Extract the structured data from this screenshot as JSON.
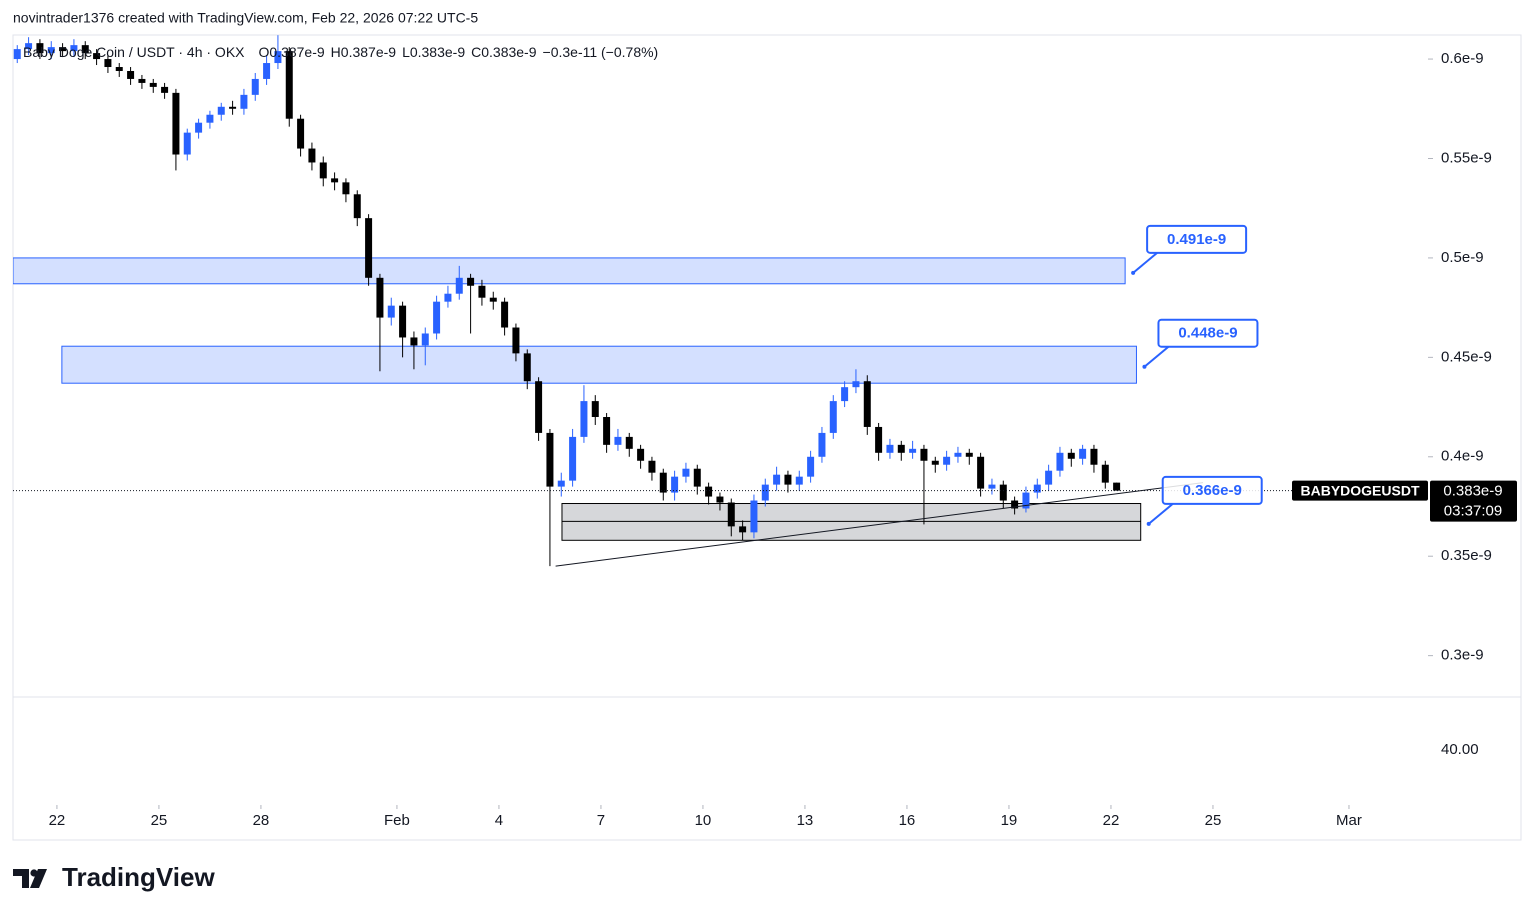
{
  "header": "novintrader1376 created with TradingView.com, Feb 22, 2026 07:22 UTC-5",
  "brand": "TradingView",
  "chart_data": {
    "type": "candlestick",
    "legend": {
      "symbol": "Baby Doge Coin / USDT · 4h · OKX",
      "values": [
        "O0.387e-9",
        "H0.387e-9",
        "L0.383e-9",
        "C0.383e-9",
        "−0.3e-11 (−0.78%)"
      ]
    },
    "xlim": [
      "2026-01-20T17:00",
      "2026-03-03T08:00"
    ],
    "xticks": [
      {
        "value": "2026-01-22T00:00",
        "label": "22"
      },
      {
        "value": "2026-01-25T00:00",
        "label": "25"
      },
      {
        "value": "2026-01-28T00:00",
        "label": "28"
      },
      {
        "value": "2026-02-01T00:00",
        "label": "Feb"
      },
      {
        "value": "2026-02-04T00:00",
        "label": "4"
      },
      {
        "value": "2026-02-07T00:00",
        "label": "7"
      },
      {
        "value": "2026-02-10T00:00",
        "label": "10"
      },
      {
        "value": "2026-02-13T00:00",
        "label": "13"
      },
      {
        "value": "2026-02-16T00:00",
        "label": "16"
      },
      {
        "value": "2026-02-19T00:00",
        "label": "19"
      },
      {
        "value": "2026-02-22T00:00",
        "label": "22"
      },
      {
        "value": "2026-02-25T00:00",
        "label": "25"
      },
      {
        "value": "2026-03-01T00:00",
        "label": "Mar"
      }
    ],
    "ylim": [
      2.792e-10,
      6.121e-10
    ],
    "yticks": [
      {
        "value": 3e-10,
        "label": "0.3e-9"
      },
      {
        "value": 3.5e-10,
        "label": "0.35e-9"
      },
      {
        "value": 4e-10,
        "label": "0.4e-9"
      },
      {
        "value": 4.5e-10,
        "label": "0.45e-9"
      },
      {
        "value": 5e-10,
        "label": "0.5e-9"
      },
      {
        "value": 5.5e-10,
        "label": "0.55e-9"
      },
      {
        "value": 6e-10,
        "label": "0.6e-9"
      }
    ],
    "up_color": "#2962ff",
    "down_color": "#000000",
    "x": [
      "2026-01-20T20:00",
      "2026-01-21T04:00",
      "2026-01-21T12:00",
      "2026-01-21T20:00",
      "2026-01-22T04:00",
      "2026-01-22T12:00",
      "2026-01-22T20:00",
      "2026-01-23T04:00",
      "2026-01-23T12:00",
      "2026-01-23T20:00",
      "2026-01-24T04:00",
      "2026-01-24T12:00",
      "2026-01-24T20:00",
      "2026-01-25T04:00",
      "2026-01-25T12:00",
      "2026-01-25T20:00",
      "2026-01-26T04:00",
      "2026-01-26T12:00",
      "2026-01-26T20:00",
      "2026-01-27T04:00",
      "2026-01-27T12:00",
      "2026-01-27T20:00",
      "2026-01-28T04:00",
      "2026-01-28T12:00",
      "2026-01-28T20:00",
      "2026-01-29T04:00",
      "2026-01-29T12:00",
      "2026-01-29T20:00",
      "2026-01-30T04:00",
      "2026-01-30T12:00",
      "2026-01-30T20:00",
      "2026-01-31T04:00",
      "2026-01-31T12:00",
      "2026-01-31T20:00",
      "2026-02-01T04:00",
      "2026-02-01T12:00",
      "2026-02-01T20:00",
      "2026-02-02T04:00",
      "2026-02-02T12:00",
      "2026-02-02T20:00",
      "2026-02-03T04:00",
      "2026-02-03T12:00",
      "2026-02-03T20:00",
      "2026-02-04T04:00",
      "2026-02-04T12:00",
      "2026-02-04T20:00",
      "2026-02-05T04:00",
      "2026-02-05T12:00",
      "2026-02-05T20:00",
      "2026-02-06T04:00",
      "2026-02-06T12:00",
      "2026-02-06T20:00",
      "2026-02-07T04:00",
      "2026-02-07T12:00",
      "2026-02-07T20:00",
      "2026-02-08T04:00",
      "2026-02-08T12:00",
      "2026-02-08T20:00",
      "2026-02-09T04:00",
      "2026-02-09T12:00",
      "2026-02-09T20:00",
      "2026-02-10T04:00",
      "2026-02-10T12:00",
      "2026-02-10T20:00",
      "2026-02-11T04:00",
      "2026-02-11T12:00",
      "2026-02-11T20:00",
      "2026-02-12T04:00",
      "2026-02-12T12:00",
      "2026-02-12T20:00",
      "2026-02-13T04:00",
      "2026-02-13T12:00",
      "2026-02-13T20:00",
      "2026-02-14T04:00",
      "2026-02-14T12:00",
      "2026-02-14T20:00",
      "2026-02-15T04:00",
      "2026-02-15T12:00",
      "2026-02-15T20:00",
      "2026-02-16T04:00",
      "2026-02-16T12:00",
      "2026-02-16T20:00",
      "2026-02-17T04:00",
      "2026-02-17T12:00",
      "2026-02-17T20:00",
      "2026-02-18T04:00",
      "2026-02-18T12:00",
      "2026-02-18T20:00",
      "2026-02-19T04:00",
      "2026-02-19T12:00",
      "2026-02-19T20:00",
      "2026-02-20T04:00",
      "2026-02-20T12:00",
      "2026-02-20T20:00",
      "2026-02-21T04:00",
      "2026-02-21T12:00",
      "2026-02-21T20:00",
      "2026-02-22T04:00"
    ],
    "ohlc": [
      [
        6e-10,
        6.07e-10,
        5.98e-10,
        6.05e-10
      ],
      [
        6.05e-10,
        6.11e-10,
        6.02e-10,
        6.08e-10
      ],
      [
        6.08e-10,
        6.1e-10,
        6e-10,
        6.03e-10
      ],
      [
        6.03e-10,
        6.09e-10,
        6e-10,
        6.06e-10
      ],
      [
        6.06e-10,
        6.08e-10,
        6.01e-10,
        6.04e-10
      ],
      [
        6.04e-10,
        6.1e-10,
        6.01e-10,
        6.07e-10
      ],
      [
        6.07e-10,
        6.09e-10,
        6e-10,
        6.03e-10
      ],
      [
        6.03e-10,
        6.05e-10,
        5.97e-10,
        6e-10
      ],
      [
        6e-10,
        6.02e-10,
        5.93e-10,
        5.96e-10
      ],
      [
        5.96e-10,
        5.98e-10,
        5.91e-10,
        5.94e-10
      ],
      [
        5.94e-10,
        5.96e-10,
        5.87e-10,
        5.9e-10
      ],
      [
        5.9e-10,
        5.92e-10,
        5.85e-10,
        5.88e-10
      ],
      [
        5.88e-10,
        5.9e-10,
        5.83e-10,
        5.86e-10
      ],
      [
        5.86e-10,
        5.88e-10,
        5.8e-10,
        5.83e-10
      ],
      [
        5.83e-10,
        5.85e-10,
        5.44e-10,
        5.52e-10
      ],
      [
        5.52e-10,
        5.65e-10,
        5.49e-10,
        5.63e-10
      ],
      [
        5.63e-10,
        5.7e-10,
        5.6e-10,
        5.68e-10
      ],
      [
        5.68e-10,
        5.74e-10,
        5.65e-10,
        5.72e-10
      ],
      [
        5.72e-10,
        5.78e-10,
        5.69e-10,
        5.76e-10
      ],
      [
        5.76e-10,
        5.79e-10,
        5.72e-10,
        5.75e-10
      ],
      [
        5.75e-10,
        5.85e-10,
        5.72e-10,
        5.82e-10
      ],
      [
        5.82e-10,
        5.93e-10,
        5.79e-10,
        5.9e-10
      ],
      [
        5.9e-10,
        6.02e-10,
        5.87e-10,
        5.98e-10
      ],
      [
        5.98e-10,
        6.12e-10,
        5.95e-10,
        6.04e-10
      ],
      [
        6.04e-10,
        6.06e-10,
        5.66e-10,
        5.7e-10
      ],
      [
        5.7e-10,
        5.72e-10,
        5.51e-10,
        5.55e-10
      ],
      [
        5.55e-10,
        5.58e-10,
        5.44e-10,
        5.48e-10
      ],
      [
        5.48e-10,
        5.51e-10,
        5.36e-10,
        5.4e-10
      ],
      [
        5.4e-10,
        5.43e-10,
        5.34e-10,
        5.38e-10
      ],
      [
        5.38e-10,
        5.4e-10,
        5.28e-10,
        5.32e-10
      ],
      [
        5.32e-10,
        5.34e-10,
        5.16e-10,
        5.2e-10
      ],
      [
        5.2e-10,
        5.22e-10,
        4.86e-10,
        4.9e-10
      ],
      [
        4.9e-10,
        4.92e-10,
        4.43e-10,
        4.7e-10
      ],
      [
        4.7e-10,
        4.8e-10,
        4.66e-10,
        4.76e-10
      ],
      [
        4.76e-10,
        4.78e-10,
        4.5e-10,
        4.6e-10
      ],
      [
        4.6e-10,
        4.63e-10,
        4.44e-10,
        4.56e-10
      ],
      [
        4.56e-10,
        4.65e-10,
        4.46e-10,
        4.62e-10
      ],
      [
        4.62e-10,
        4.81e-10,
        4.59e-10,
        4.78e-10
      ],
      [
        4.78e-10,
        4.86e-10,
        4.75e-10,
        4.82e-10
      ],
      [
        4.82e-10,
        4.96e-10,
        4.79e-10,
        4.9e-10
      ],
      [
        4.9e-10,
        4.92e-10,
        4.62e-10,
        4.86e-10
      ],
      [
        4.86e-10,
        4.89e-10,
        4.76e-10,
        4.8e-10
      ],
      [
        4.8e-10,
        4.83e-10,
        4.74e-10,
        4.78e-10
      ],
      [
        4.78e-10,
        4.8e-10,
        4.61e-10,
        4.65e-10
      ],
      [
        4.65e-10,
        4.67e-10,
        4.48e-10,
        4.52e-10
      ],
      [
        4.52e-10,
        4.54e-10,
        4.34e-10,
        4.38e-10
      ],
      [
        4.38e-10,
        4.4e-10,
        4.08e-10,
        4.12e-10
      ],
      [
        4.12e-10,
        4.14e-10,
        3.45e-10,
        3.85e-10
      ],
      [
        3.85e-10,
        3.92e-10,
        3.8e-10,
        3.88e-10
      ],
      [
        3.88e-10,
        4.14e-10,
        3.85e-10,
        4.1e-10
      ],
      [
        4.1e-10,
        4.36e-10,
        4.07e-10,
        4.28e-10
      ],
      [
        4.28e-10,
        4.31e-10,
        4.16e-10,
        4.2e-10
      ],
      [
        4.2e-10,
        4.22e-10,
        4.02e-10,
        4.06e-10
      ],
      [
        4.06e-10,
        4.14e-10,
        4.03e-10,
        4.1e-10
      ],
      [
        4.1e-10,
        4.12e-10,
        4e-10,
        4.04e-10
      ],
      [
        4.04e-10,
        4.06e-10,
        3.94e-10,
        3.98e-10
      ],
      [
        3.98e-10,
        4e-10,
        3.88e-10,
        3.92e-10
      ],
      [
        3.92e-10,
        3.94e-10,
        3.78e-10,
        3.82e-10
      ],
      [
        3.82e-10,
        3.93e-10,
        3.78e-10,
        3.9e-10
      ],
      [
        3.9e-10,
        3.97e-10,
        3.87e-10,
        3.94e-10
      ],
      [
        3.94e-10,
        3.96e-10,
        3.81e-10,
        3.85e-10
      ],
      [
        3.85e-10,
        3.87e-10,
        3.76e-10,
        3.8e-10
      ],
      [
        3.8e-10,
        3.82e-10,
        3.73e-10,
        3.77e-10
      ],
      [
        3.77e-10,
        3.79e-10,
        3.6e-10,
        3.65e-10
      ],
      [
        3.65e-10,
        3.68e-10,
        3.58e-10,
        3.62e-10
      ],
      [
        3.62e-10,
        3.81e-10,
        3.59e-10,
        3.78e-10
      ],
      [
        3.78e-10,
        3.89e-10,
        3.75e-10,
        3.86e-10
      ],
      [
        3.86e-10,
        3.95e-10,
        3.83e-10,
        3.91e-10
      ],
      [
        3.91e-10,
        3.93e-10,
        3.82e-10,
        3.86e-10
      ],
      [
        3.86e-10,
        3.93e-10,
        3.83e-10,
        3.9e-10
      ],
      [
        3.9e-10,
        4.03e-10,
        3.87e-10,
        4e-10
      ],
      [
        4e-10,
        4.15e-10,
        3.97e-10,
        4.12e-10
      ],
      [
        4.12e-10,
        4.31e-10,
        4.09e-10,
        4.28e-10
      ],
      [
        4.28e-10,
        4.38e-10,
        4.25e-10,
        4.35e-10
      ],
      [
        4.35e-10,
        4.44e-10,
        4.32e-10,
        4.38e-10
      ],
      [
        4.38e-10,
        4.41e-10,
        4.11e-10,
        4.15e-10
      ],
      [
        4.15e-10,
        4.17e-10,
        3.98e-10,
        4.02e-10
      ],
      [
        4.02e-10,
        4.09e-10,
        3.99e-10,
        4.06e-10
      ],
      [
        4.06e-10,
        4.08e-10,
        3.98e-10,
        4.02e-10
      ],
      [
        4.02e-10,
        4.08e-10,
        3.99e-10,
        4.04e-10
      ],
      [
        4.04e-10,
        4.06e-10,
        3.66e-10,
        3.98e-10
      ],
      [
        3.98e-10,
        4e-10,
        3.92e-10,
        3.96e-10
      ],
      [
        3.96e-10,
        4.03e-10,
        3.93e-10,
        4e-10
      ],
      [
        4e-10,
        4.05e-10,
        3.97e-10,
        4.02e-10
      ],
      [
        4.02e-10,
        4.04e-10,
        3.96e-10,
        4e-10
      ],
      [
        4e-10,
        4.02e-10,
        3.8e-10,
        3.84e-10
      ],
      [
        3.84e-10,
        3.89e-10,
        3.81e-10,
        3.86e-10
      ],
      [
        3.86e-10,
        3.88e-10,
        3.74e-10,
        3.78e-10
      ],
      [
        3.78e-10,
        3.8e-10,
        3.71e-10,
        3.74e-10
      ],
      [
        3.74e-10,
        3.85e-10,
        3.72e-10,
        3.82e-10
      ],
      [
        3.82e-10,
        3.89e-10,
        3.79e-10,
        3.86e-10
      ],
      [
        3.86e-10,
        3.96e-10,
        3.83e-10,
        3.93e-10
      ],
      [
        3.93e-10,
        4.05e-10,
        3.9e-10,
        4.02e-10
      ],
      [
        4.02e-10,
        4.04e-10,
        3.95e-10,
        3.99e-10
      ],
      [
        3.99e-10,
        4.06e-10,
        3.96e-10,
        4.04e-10
      ],
      [
        4.04e-10,
        4.06e-10,
        3.92e-10,
        3.96e-10
      ],
      [
        3.96e-10,
        3.98e-10,
        3.84e-10,
        3.87e-10
      ],
      [
        3.87e-10,
        3.87e-10,
        3.83e-10,
        3.83e-10
      ]
    ],
    "zones": [
      {
        "start": "2026-01-20T17:00",
        "end": "2026-02-22T10:00",
        "top": 5e-10,
        "bottom": 4.87e-10,
        "color": "#2962ff",
        "label": "0.491e-9"
      },
      {
        "start": "2026-01-22T03:30",
        "end": "2026-02-22T18:00",
        "top": 4.556e-10,
        "bottom": 4.37e-10,
        "color": "#2962ff",
        "label": "0.448e-9"
      },
      {
        "start": "2026-02-05T20:30",
        "end": "2026-02-22T21:00",
        "top": 3.765e-10,
        "bottom": 3.58e-10,
        "mid": 3.675e-10,
        "color": "#787b86",
        "label": "0.366e-9"
      }
    ],
    "trendline": {
      "x": [
        "2026-02-05T16:00",
        "2026-02-24T17:00"
      ],
      "y": [
        3.45e-10,
        3.87e-10
      ]
    },
    "price_tag": {
      "symbol": "BABYDOGEUSDT",
      "price": "0.383e-9",
      "countdown": "03:37:09"
    },
    "lower_pane_label": "40.00"
  }
}
